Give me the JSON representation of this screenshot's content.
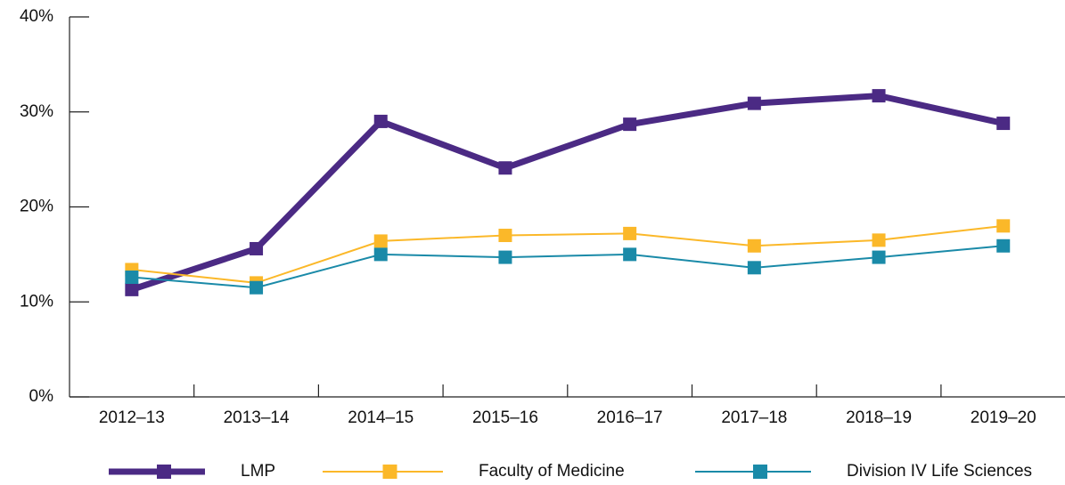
{
  "chart_data": {
    "type": "line",
    "categories": [
      "2012–13",
      "2013–14",
      "2014–15",
      "2015–16",
      "2016–17",
      "2017–18",
      "2018–19",
      "2019–20"
    ],
    "series": [
      {
        "name": "LMP",
        "color": "#4b2a84",
        "values": [
          11.3,
          15.6,
          29.0,
          24.1,
          28.7,
          30.9,
          31.7,
          28.8
        ]
      },
      {
        "name": "Faculty of Medicine",
        "color": "#fbb829",
        "values": [
          13.4,
          12.0,
          16.4,
          17.0,
          17.2,
          15.9,
          16.5,
          18.0
        ]
      },
      {
        "name": "Division IV Life Sciences",
        "color": "#1a8aa8",
        "values": [
          12.6,
          11.5,
          15.0,
          14.7,
          15.0,
          13.6,
          14.7,
          15.9
        ]
      }
    ],
    "ylim": [
      0,
      40
    ],
    "yticks": [
      {
        "value": 0,
        "label": "0%"
      },
      {
        "value": 10,
        "label": "10%"
      },
      {
        "value": 20,
        "label": "20%"
      },
      {
        "value": 30,
        "label": "30%"
      },
      {
        "value": 40,
        "label": "40%"
      }
    ],
    "legend": "bottom"
  }
}
